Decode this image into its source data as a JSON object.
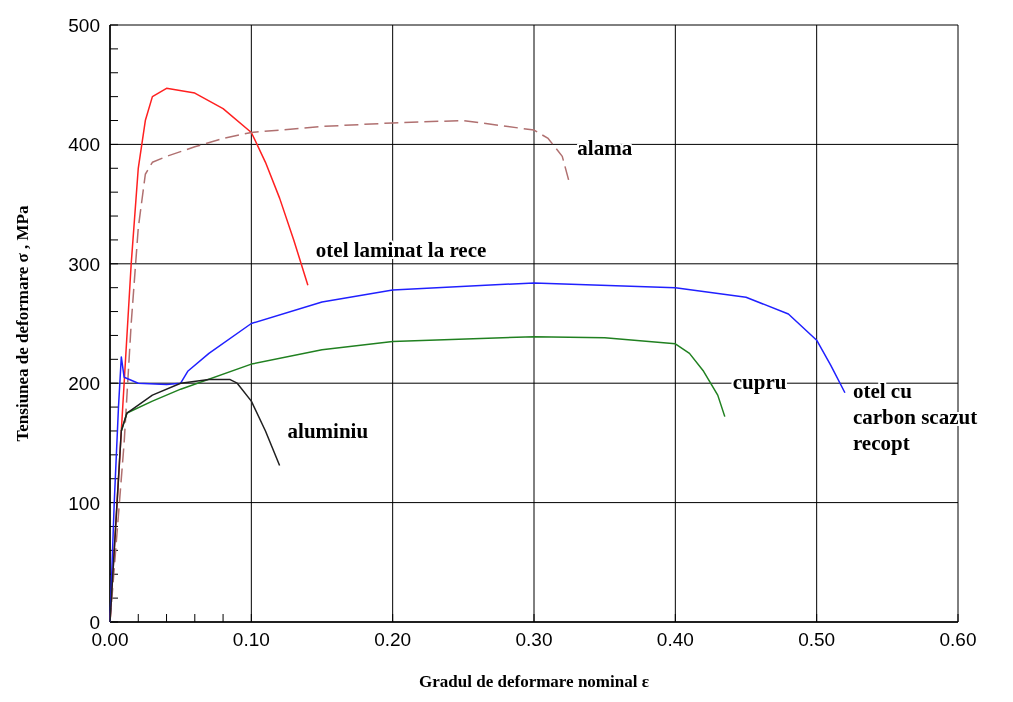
{
  "chart_data": {
    "type": "line",
    "xlabel": "Gradul de deformare nominal  ε",
    "ylabel": "Tensiunea de deformare  σ , MPa",
    "xlim": [
      0,
      0.6
    ],
    "ylim": [
      0,
      500
    ],
    "xticks": [
      {
        "value": 0,
        "label": "0.00"
      },
      {
        "value": 0.02,
        "label": null
      },
      {
        "value": 0.04,
        "label": null
      },
      {
        "value": 0.06,
        "label": null
      },
      {
        "value": 0.08,
        "label": null
      },
      {
        "value": 0.1,
        "label": "0.10"
      },
      {
        "value": 0.2,
        "label": "0.20"
      },
      {
        "value": 0.3,
        "label": "0.30"
      },
      {
        "value": 0.4,
        "label": "0.40"
      },
      {
        "value": 0.5,
        "label": "0.50"
      },
      {
        "value": 0.6,
        "label": "0.60"
      }
    ],
    "yticks": [
      0,
      {
        "value": 20,
        "label": null
      },
      {
        "value": 40,
        "label": null
      },
      {
        "value": 60,
        "label": null
      },
      {
        "value": 80,
        "label": null
      },
      100,
      {
        "value": 120,
        "label": null
      },
      {
        "value": 140,
        "label": null
      },
      {
        "value": 160,
        "label": null
      },
      {
        "value": 180,
        "label": null
      },
      200,
      {
        "value": 220,
        "label": null
      },
      {
        "value": 240,
        "label": null
      },
      {
        "value": 260,
        "label": null
      },
      {
        "value": 280,
        "label": null
      },
      300,
      {
        "value": 320,
        "label": null
      },
      {
        "value": 340,
        "label": null
      },
      {
        "value": 360,
        "label": null
      },
      {
        "value": 380,
        "label": null
      },
      400,
      {
        "value": 420,
        "label": null
      },
      {
        "value": 440,
        "label": null
      },
      {
        "value": 460,
        "label": null
      },
      {
        "value": 480,
        "label": null
      },
      500
    ],
    "grid": true,
    "marker": "none",
    "series": [
      {
        "name": "otel laminat la rece",
        "color": "#ff2020",
        "x": [
          0,
          0.005,
          0.01,
          0.015,
          0.02,
          0.025,
          0.03,
          0.04,
          0.06,
          0.08,
          0.1,
          0.11,
          0.12,
          0.13,
          0.14
        ],
        "values": [
          0,
          100,
          200,
          300,
          380,
          420,
          440,
          447,
          443,
          430,
          410,
          385,
          355,
          320,
          282
        ]
      },
      {
        "name": "alama",
        "color": "#b07070",
        "line_style": "dashed",
        "x": [
          0,
          0.01,
          0.015,
          0.02,
          0.025,
          0.03,
          0.04,
          0.06,
          0.08,
          0.1,
          0.15,
          0.2,
          0.25,
          0.3,
          0.31,
          0.32,
          0.325
        ],
        "values": [
          0,
          150,
          250,
          330,
          375,
          385,
          390,
          398,
          405,
          410,
          415,
          418,
          420,
          412,
          405,
          390,
          368
        ]
      },
      {
        "name": "otel cu carbon scazut recopt",
        "color": "#2020ff",
        "x": [
          0,
          0.003,
          0.006,
          0.008,
          0.01,
          0.02,
          0.04,
          0.05,
          0.055,
          0.07,
          0.1,
          0.15,
          0.2,
          0.3,
          0.4,
          0.45,
          0.48,
          0.5,
          0.51,
          0.52
        ],
        "values": [
          0,
          100,
          180,
          222,
          205,
          200,
          199,
          200,
          210,
          225,
          250,
          268,
          278,
          284,
          280,
          272,
          258,
          236,
          215,
          192
        ]
      },
      {
        "name": "cupru",
        "color": "#208020",
        "x": [
          0.008,
          0.012,
          0.03,
          0.05,
          0.1,
          0.15,
          0.2,
          0.3,
          0.35,
          0.4,
          0.41,
          0.42,
          0.43,
          0.435
        ],
        "values": [
          160,
          175,
          185,
          195,
          216,
          228,
          235,
          239,
          238,
          233,
          225,
          210,
          190,
          172
        ]
      },
      {
        "name": "aluminiu",
        "color": "#202020",
        "x": [
          0,
          0.005,
          0.008,
          0.012,
          0.03,
          0.05,
          0.07,
          0.085,
          0.09,
          0.1,
          0.11,
          0.12
        ],
        "values": [
          0,
          100,
          160,
          175,
          190,
          200,
          203,
          203,
          200,
          185,
          160,
          131
        ]
      }
    ]
  }
}
